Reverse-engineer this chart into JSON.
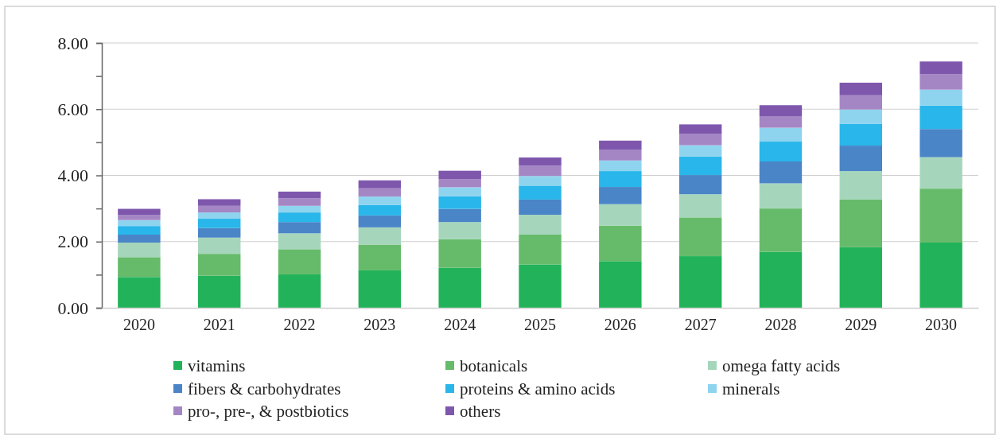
{
  "chart_data": {
    "type": "bar",
    "stacked": true,
    "categories": [
      "2020",
      "2021",
      "2022",
      "2023",
      "2024",
      "2025",
      "2026",
      "2027",
      "2028",
      "2029",
      "2030"
    ],
    "ylim": [
      0,
      8
    ],
    "yticks": [
      {
        "value": 0,
        "label": "0.00"
      },
      {
        "value": 1,
        "label": null
      },
      {
        "value": 2,
        "label": "2.00"
      },
      {
        "value": 3,
        "label": null
      },
      {
        "value": 4,
        "label": "4.00"
      },
      {
        "value": 5,
        "label": null
      },
      {
        "value": 6,
        "label": "6.00"
      },
      {
        "value": 7,
        "label": null
      },
      {
        "value": 8,
        "label": "8.00"
      }
    ],
    "grid": "y",
    "legend": "bottom",
    "series": [
      {
        "name": "vitamins",
        "color": "#22b35a",
        "values": [
          0.93,
          0.97,
          1.01,
          1.13,
          1.21,
          1.31,
          1.41,
          1.56,
          1.69,
          1.83,
          1.97
        ]
      },
      {
        "name": "botanicals",
        "color": "#66bb6a",
        "values": [
          0.6,
          0.66,
          0.76,
          0.78,
          0.86,
          0.9,
          1.07,
          1.17,
          1.31,
          1.44,
          1.63
        ]
      },
      {
        "name": "omega fatty acids",
        "color": "#a5d6bc",
        "values": [
          0.44,
          0.49,
          0.48,
          0.52,
          0.52,
          0.6,
          0.65,
          0.7,
          0.76,
          0.86,
          0.95
        ]
      },
      {
        "name": "fibers & carbohydrates",
        "color": "#4a85c8",
        "values": [
          0.24,
          0.29,
          0.34,
          0.36,
          0.4,
          0.46,
          0.52,
          0.58,
          0.66,
          0.77,
          0.85
        ]
      },
      {
        "name": "proteins & amino acids",
        "color": "#29b6ea",
        "values": [
          0.26,
          0.28,
          0.29,
          0.32,
          0.38,
          0.42,
          0.48,
          0.56,
          0.6,
          0.66,
          0.71
        ]
      },
      {
        "name": "minerals",
        "color": "#8ed4ef",
        "values": [
          0.18,
          0.19,
          0.2,
          0.25,
          0.27,
          0.29,
          0.32,
          0.34,
          0.42,
          0.43,
          0.48
        ]
      },
      {
        "name": "pro-, pre-, & postbiotics",
        "color": "#a586c4",
        "values": [
          0.16,
          0.2,
          0.23,
          0.25,
          0.25,
          0.31,
          0.33,
          0.35,
          0.35,
          0.43,
          0.47
        ]
      },
      {
        "name": "others",
        "color": "#7e57ad",
        "values": [
          0.18,
          0.2,
          0.2,
          0.24,
          0.25,
          0.25,
          0.27,
          0.28,
          0.33,
          0.38,
          0.38
        ]
      }
    ]
  }
}
